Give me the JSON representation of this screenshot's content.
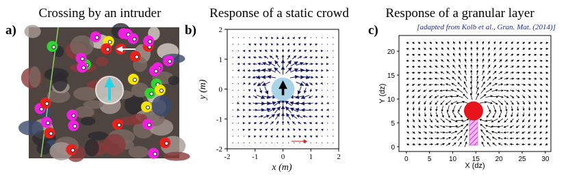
{
  "panels": [
    {
      "label": "a)",
      "title": "Crossing by an intruder"
    },
    {
      "label": "b)",
      "title": "Response of a static crowd",
      "xlabel": "x (m)",
      "ylabel": "y (m)",
      "xlim": [
        -2,
        2
      ],
      "ylim": [
        -2,
        2
      ],
      "xticks": [
        -2,
        -1,
        0,
        1,
        2
      ],
      "yticks": [
        -2,
        -1,
        0,
        1,
        2
      ]
    },
    {
      "label": "c)",
      "title": "Response of a granular layer",
      "note": "[adapted from Kolb et al., Gran. Mat. (2014)]",
      "xlabel": "X (dz)",
      "ylabel": "Y (dz)",
      "xlim": [
        -1.6,
        31.2
      ],
      "ylim": [
        -1,
        23.3
      ],
      "xticks": [
        0,
        5,
        10,
        15,
        20,
        25,
        30
      ],
      "yticks": [
        0,
        5,
        10,
        15,
        20
      ]
    }
  ]
}
